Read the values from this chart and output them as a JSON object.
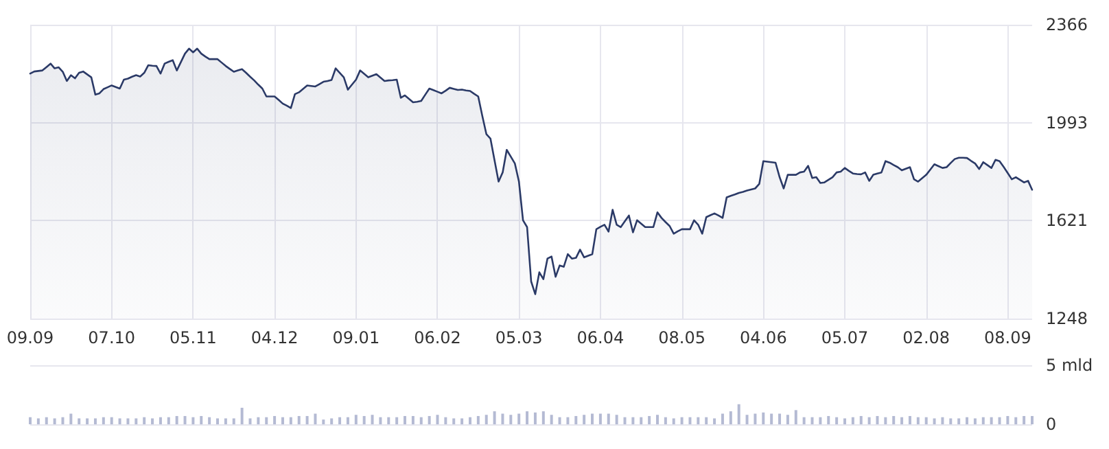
{
  "chart_data": [
    {
      "type": "area",
      "ylim": [
        1248,
        2366
      ],
      "yticks": [
        1248,
        1621,
        1993,
        2366
      ],
      "grid": true,
      "categories": [
        "09.09",
        null,
        null,
        null,
        null,
        null,
        null,
        null,
        null,
        null,
        null,
        null,
        null,
        null,
        null,
        null,
        null,
        null,
        null,
        null,
        "07.10",
        null,
        null,
        null,
        null,
        null,
        null,
        null,
        null,
        null,
        null,
        null,
        null,
        null,
        null,
        null,
        null,
        null,
        null,
        null,
        "05.11",
        null,
        null,
        null,
        null,
        null,
        null,
        null,
        null,
        null,
        null,
        null,
        null,
        null,
        null,
        null,
        null,
        null,
        null,
        null,
        "04.12",
        null,
        null,
        null,
        null,
        null,
        null,
        null,
        null,
        null,
        null,
        null,
        null,
        null,
        null,
        null,
        null,
        null,
        null,
        null,
        "09.01",
        null,
        null,
        null,
        null,
        null,
        null,
        null,
        null,
        null,
        null,
        null,
        null,
        null,
        null,
        null,
        null,
        null,
        null,
        null,
        "06.02",
        null,
        null,
        null,
        null,
        null,
        null,
        null,
        null,
        null,
        null,
        null,
        null,
        null,
        null,
        null,
        null,
        null,
        null,
        null,
        "05.03",
        null,
        null,
        null,
        null,
        null,
        null,
        null,
        null,
        null,
        null,
        null,
        null,
        null,
        null,
        null,
        null,
        null,
        null,
        null,
        "06.04",
        null,
        null,
        null,
        null,
        null,
        null,
        null,
        null,
        null,
        null,
        null,
        null,
        null,
        null,
        null,
        null,
        null,
        null,
        null,
        "08.05",
        null,
        null,
        null,
        null,
        null,
        null,
        null,
        null,
        null,
        null,
        null,
        null,
        null,
        null,
        null,
        null,
        null,
        null,
        null,
        "04.06",
        null,
        null,
        null,
        null,
        null,
        null,
        null,
        null,
        null,
        null,
        null,
        null,
        null,
        null,
        null,
        null,
        null,
        null,
        null,
        "05.07",
        null,
        null,
        null,
        null,
        null,
        null,
        null,
        null,
        null,
        null,
        null,
        null,
        null,
        null,
        null,
        null,
        null,
        null,
        null,
        "02.08",
        null,
        null,
        null,
        null,
        null,
        null,
        null,
        null,
        null,
        null,
        null,
        null,
        null,
        null,
        null,
        null,
        null,
        null,
        null,
        "08.09",
        null,
        null,
        null,
        null,
        null,
        null
      ],
      "series": [
        {
          "color": "#2b3a67",
          "values": [
            2180,
            2188,
            2190,
            2192,
            2205,
            2218,
            2200,
            2204,
            2187,
            2152,
            2174,
            2162,
            2183,
            2188,
            2177,
            2166,
            2100,
            2105,
            2121,
            2128,
            2135,
            2129,
            2123,
            2157,
            2161,
            2168,
            2174,
            2169,
            2183,
            2212,
            2210,
            2209,
            2180,
            2218,
            2225,
            2231,
            2192,
            2224,
            2256,
            2275,
            2261,
            2275,
            2256,
            2245,
            2235,
            2235,
            2235,
            2222,
            2209,
            2198,
            2187,
            2192,
            2197,
            2183,
            2168,
            2154,
            2138,
            2123,
            2093,
            2093,
            2093,
            2080,
            2066,
            2058,
            2049,
            2102,
            2109,
            2122,
            2135,
            2133,
            2131,
            2140,
            2149,
            2152,
            2156,
            2200,
            2183,
            2166,
            2119,
            2138,
            2157,
            2192,
            2179,
            2166,
            2172,
            2178,
            2165,
            2152,
            2154,
            2155,
            2157,
            2088,
            2097,
            2084,
            2071,
            2073,
            2076,
            2100,
            2123,
            2117,
            2111,
            2105,
            2115,
            2126,
            2122,
            2118,
            2119,
            2116,
            2114,
            2103,
            2093,
            2019,
            1950,
            1933,
            1851,
            1769,
            1804,
            1890,
            1864,
            1838,
            1769,
            1622,
            1596,
            1389,
            1341,
            1424,
            1398,
            1476,
            1484,
            1407,
            1450,
            1445,
            1493,
            1476,
            1479,
            1510,
            1481,
            1487,
            1493,
            1588,
            1597,
            1605,
            1579,
            1662,
            1605,
            1596,
            1618,
            1640,
            1576,
            1622,
            1609,
            1596,
            1596,
            1596,
            1652,
            1631,
            1615,
            1600,
            1571,
            1580,
            1588,
            1588,
            1588,
            1622,
            1605,
            1571,
            1634,
            1641,
            1648,
            1640,
            1631,
            1709,
            1715,
            1720,
            1726,
            1730,
            1735,
            1739,
            1743,
            1760,
            1847,
            1845,
            1843,
            1841,
            1786,
            1743,
            1795,
            1795,
            1795,
            1804,
            1807,
            1829,
            1783,
            1786,
            1764,
            1766,
            1776,
            1786,
            1804,
            1807,
            1821,
            1810,
            1800,
            1798,
            1797,
            1804,
            1772,
            1795,
            1800,
            1804,
            1847,
            1841,
            1832,
            1824,
            1812,
            1818,
            1824,
            1778,
            1769,
            1782,
            1795,
            1815,
            1835,
            1828,
            1821,
            1824,
            1840,
            1855,
            1860,
            1860,
            1859,
            1848,
            1838,
            1817,
            1843,
            1832,
            1821,
            1852,
            1847,
            1825,
            1802,
            1778,
            1786,
            1776,
            1766,
            1772,
            1738
          ]
        }
      ]
    },
    {
      "type": "bar",
      "tick_labels": "y",
      "ylim": [
        0,
        5
      ],
      "yticks": [
        0,
        {
          "value": 5,
          "label": "5 mld"
        }
      ],
      "grid": true,
      "categories": [
        null,
        null,
        null,
        null,
        null,
        null,
        null,
        null,
        null,
        null,
        null,
        null,
        null,
        null,
        null,
        null,
        null,
        null,
        null,
        null,
        null,
        null,
        null,
        null,
        null,
        null,
        null,
        null,
        null,
        null,
        null,
        null,
        null,
        null,
        null,
        null,
        null,
        null,
        null,
        null,
        null,
        null,
        null,
        null,
        null,
        null,
        null,
        null,
        null,
        null,
        null,
        null,
        null,
        null,
        null,
        null,
        null,
        null,
        null,
        null,
        null,
        null,
        null,
        null,
        null,
        null,
        null,
        null,
        null,
        null,
        null,
        null,
        null,
        null,
        null,
        null,
        null,
        null,
        null,
        null,
        null,
        null,
        null,
        null,
        null,
        null,
        null,
        null,
        null,
        null,
        null,
        null,
        null,
        null,
        null,
        null,
        null,
        null,
        null,
        null,
        null,
        null,
        null,
        null,
        null,
        null,
        null,
        null,
        null,
        null,
        null,
        null,
        null,
        null,
        null,
        null,
        null,
        null,
        null,
        null,
        null,
        null,
        null,
        null,
        null,
        null,
        null,
        null,
        null,
        null,
        null,
        null,
        null,
        null,
        null,
        null,
        null,
        null,
        null,
        null,
        null,
        null,
        null,
        null,
        null,
        null,
        null,
        null,
        null,
        null,
        null,
        null,
        null,
        null,
        null,
        null,
        null,
        null,
        null,
        null,
        null,
        null,
        null,
        null,
        null,
        null,
        null,
        null,
        null,
        null,
        null,
        null,
        null,
        null,
        null,
        null,
        null,
        null,
        null,
        null,
        null,
        null,
        null,
        null,
        null,
        null,
        null,
        null,
        null,
        null,
        null,
        null,
        null,
        null,
        null,
        null,
        null,
        null,
        null,
        null,
        null,
        null,
        null,
        null,
        null,
        null,
        null,
        null,
        null,
        null,
        null,
        null,
        null,
        null,
        null,
        null,
        null,
        null,
        null,
        null,
        null,
        null,
        null,
        null,
        null,
        null,
        null,
        null,
        null,
        null,
        null,
        null,
        null,
        null,
        null,
        null,
        null,
        null,
        null,
        null,
        null,
        null,
        null,
        null,
        null,
        null,
        null
      ],
      "series": [
        {
          "color": "#b4bad3",
          "values": [
            0.6,
            null,
            0.5,
            null,
            0.6,
            null,
            0.5,
            null,
            0.6,
            null,
            0.9,
            null,
            0.5,
            null,
            0.5,
            null,
            0.5,
            null,
            0.6,
            null,
            0.6,
            null,
            0.5,
            null,
            0.5,
            null,
            0.5,
            null,
            0.6,
            null,
            0.5,
            null,
            0.6,
            null,
            0.6,
            null,
            0.7,
            null,
            0.7,
            null,
            0.6,
            null,
            0.7,
            null,
            0.6,
            null,
            0.5,
            null,
            0.5,
            null,
            0.5,
            null,
            1.4,
            null,
            0.5,
            null,
            0.6,
            null,
            0.6,
            null,
            0.7,
            null,
            0.6,
            null,
            0.6,
            null,
            0.7,
            null,
            0.7,
            null,
            0.9,
            null,
            0.4,
            null,
            0.5,
            null,
            0.6,
            null,
            0.6,
            null,
            0.8,
            null,
            0.7,
            null,
            0.8,
            null,
            0.6,
            null,
            0.6,
            null,
            0.6,
            null,
            0.7,
            null,
            0.7,
            null,
            0.6,
            null,
            0.7,
            null,
            0.8,
            null,
            0.6,
            null,
            0.5,
            null,
            0.5,
            null,
            0.6,
            null,
            0.7,
            null,
            0.8,
            null,
            1.1,
            null,
            0.9,
            null,
            0.8,
            null,
            0.9,
            null,
            1.1,
            null,
            1.0,
            null,
            1.1,
            null,
            0.8,
            null,
            0.6,
            null,
            0.6,
            null,
            0.7,
            null,
            0.8,
            null,
            0.9,
            null,
            0.9,
            null,
            0.9,
            null,
            0.8,
            null,
            0.6,
            null,
            0.6,
            null,
            0.6,
            null,
            0.7,
            null,
            0.8,
            null,
            0.6,
            null,
            0.5,
            null,
            0.6,
            null,
            0.6,
            null,
            0.6,
            null,
            0.6,
            null,
            0.5,
            null,
            0.9,
            null,
            1.1,
            null,
            1.7,
            null,
            0.8,
            null,
            0.9,
            null,
            1.0,
            null,
            0.9,
            null,
            0.9,
            null,
            0.8,
            null,
            1.2,
            null,
            0.6,
            null,
            0.6,
            null,
            0.6,
            null,
            0.7,
            null,
            0.6,
            null,
            0.5,
            null,
            0.6,
            null,
            0.7,
            null,
            0.6,
            null,
            0.7,
            null,
            0.6,
            null,
            0.7,
            null,
            0.6,
            null,
            0.7,
            null,
            0.6,
            null,
            0.6,
            null,
            0.5,
            null,
            0.6,
            null,
            0.5,
            null,
            0.5,
            null,
            0.6,
            null,
            0.5,
            null,
            0.6,
            null,
            0.6,
            null,
            0.6,
            null,
            0.7,
            null,
            0.6,
            null,
            0.7,
            null,
            0.7
          ]
        }
      ]
    }
  ]
}
